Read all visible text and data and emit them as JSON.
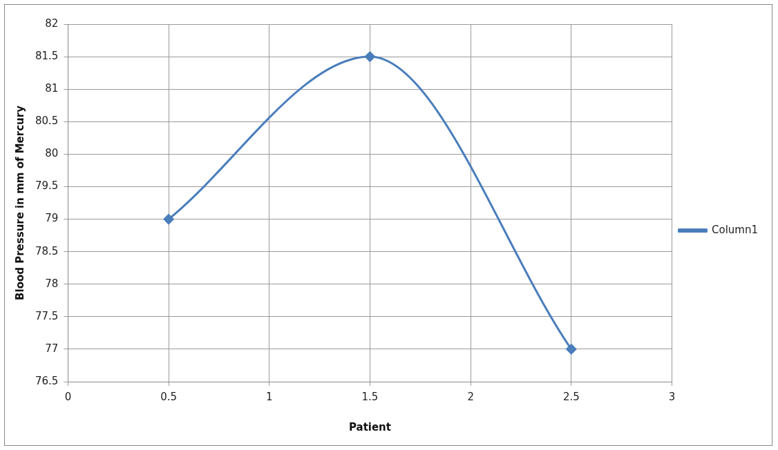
{
  "chart_data": {
    "type": "line",
    "xlabel": "Patient",
    "ylabel": "Blood Pressure in mm of Mercury",
    "x": [
      0.5,
      1.5,
      2.5
    ],
    "series": [
      {
        "name": "Column1",
        "color": "#4a7ebb",
        "values": [
          79,
          81.5,
          77
        ]
      }
    ],
    "xlim": [
      0,
      3
    ],
    "xticks": [
      0,
      0.5,
      1,
      1.5,
      2,
      2.5,
      3
    ],
    "ylim": [
      76.5,
      82
    ],
    "yticks": [
      76.5,
      77,
      77.5,
      78,
      78.5,
      79,
      79.5,
      80,
      80.5,
      81,
      81.5,
      82
    ],
    "grid": true,
    "legend": "right",
    "marker": "diamond",
    "line_style": "solid"
  }
}
